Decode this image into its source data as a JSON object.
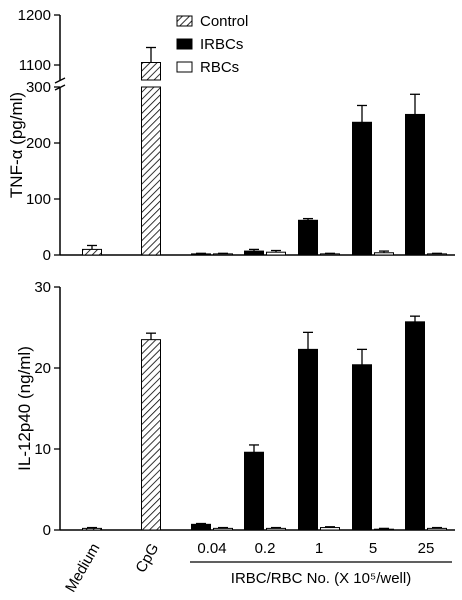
{
  "legend": [
    {
      "name": "Control",
      "pattern": "hatch"
    },
    {
      "name": "IRBCs",
      "pattern": "solid"
    },
    {
      "name": "RBCs",
      "pattern": "open"
    }
  ],
  "colors": {
    "solid": "#000000",
    "open": "#ffffff",
    "hatch_line": "#000000"
  },
  "categories": [
    "Medium",
    "CpG",
    "0.04",
    "0.2",
    "1",
    "5",
    "25"
  ],
  "x_group_label": "IRBC/RBC No. (X 10⁵/well)",
  "chart_data": [
    {
      "type": "bar",
      "ylabel": "TNF-α (pg/ml)",
      "y_axis": "broken",
      "lower_range": [
        0,
        300
      ],
      "lower_ticks": [
        0,
        100,
        200,
        300
      ],
      "upper_range": [
        1070,
        1200
      ],
      "upper_ticks": [
        1100,
        1200
      ],
      "bars": [
        {
          "category": "Medium",
          "series": "Control",
          "value": 10,
          "error": 7
        },
        {
          "category": "CpG",
          "series": "Control",
          "value": 1105,
          "error": 30
        },
        {
          "category": "0.04",
          "series": "IRBCs",
          "value": 2,
          "error": 1
        },
        {
          "category": "0.04",
          "series": "RBCs",
          "value": 2,
          "error": 1
        },
        {
          "category": "0.2",
          "series": "IRBCs",
          "value": 7,
          "error": 3
        },
        {
          "category": "0.2",
          "series": "RBCs",
          "value": 5,
          "error": 3
        },
        {
          "category": "1",
          "series": "IRBCs",
          "value": 62,
          "error": 3
        },
        {
          "category": "1",
          "series": "RBCs",
          "value": 2,
          "error": 1
        },
        {
          "category": "5",
          "series": "IRBCs",
          "value": 237,
          "error": 30
        },
        {
          "category": "5",
          "series": "RBCs",
          "value": 4,
          "error": 3
        },
        {
          "category": "25",
          "series": "IRBCs",
          "value": 251,
          "error": 36
        },
        {
          "category": "25",
          "series": "RBCs",
          "value": 2,
          "error": 1
        }
      ]
    },
    {
      "type": "bar",
      "ylabel": "IL-12p40 (ng/ml)",
      "ylim": [
        0,
        30
      ],
      "yticks": [
        0,
        10,
        20,
        30
      ],
      "bars": [
        {
          "category": "Medium",
          "series": "Control",
          "value": 0.2,
          "error": 0.1
        },
        {
          "category": "CpG",
          "series": "Control",
          "value": 23.5,
          "error": 0.8
        },
        {
          "category": "0.04",
          "series": "IRBCs",
          "value": 0.7,
          "error": 0.1
        },
        {
          "category": "0.04",
          "series": "RBCs",
          "value": 0.2,
          "error": 0.1
        },
        {
          "category": "0.2",
          "series": "IRBCs",
          "value": 9.6,
          "error": 0.9
        },
        {
          "category": "0.2",
          "series": "RBCs",
          "value": 0.2,
          "error": 0.1
        },
        {
          "category": "1",
          "series": "IRBCs",
          "value": 22.3,
          "error": 2.1
        },
        {
          "category": "1",
          "series": "RBCs",
          "value": 0.3,
          "error": 0.1
        },
        {
          "category": "5",
          "series": "IRBCs",
          "value": 20.4,
          "error": 1.9
        },
        {
          "category": "5",
          "series": "RBCs",
          "value": 0.1,
          "error": 0.1
        },
        {
          "category": "25",
          "series": "IRBCs",
          "value": 25.7,
          "error": 0.7
        },
        {
          "category": "25",
          "series": "RBCs",
          "value": 0.2,
          "error": 0.1
        }
      ]
    }
  ]
}
